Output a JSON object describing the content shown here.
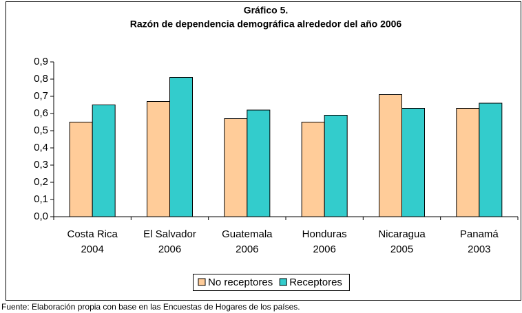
{
  "chart_data": {
    "type": "bar",
    "title": [
      "Gráfico 5.",
      "Razón de dependencia demográfica alrededor del año 2006"
    ],
    "categories": [
      [
        "Costa Rica",
        "2004"
      ],
      [
        "El Salvador",
        "2006"
      ],
      [
        "Guatemala",
        "2006"
      ],
      [
        "Honduras",
        "2006"
      ],
      [
        "Nicaragua",
        "2005"
      ],
      [
        "Panamá",
        "2003"
      ]
    ],
    "series": [
      {
        "name": "No receptores",
        "color": "#ffcc99",
        "values": [
          0.55,
          0.67,
          0.57,
          0.55,
          0.71,
          0.63
        ]
      },
      {
        "name": "Receptores",
        "color": "#33cccc",
        "values": [
          0.65,
          0.81,
          0.62,
          0.59,
          0.63,
          0.66
        ]
      }
    ],
    "ylim": [
      0,
      0.9
    ],
    "yticks": [
      {
        "value": 0,
        "label": "0,0"
      },
      {
        "value": 0.1,
        "label": "0,1"
      },
      {
        "value": 0.2,
        "label": "0,2"
      },
      {
        "value": 0.3,
        "label": "0,3"
      },
      {
        "value": 0.4,
        "label": "0,4"
      },
      {
        "value": 0.5,
        "label": "0,5"
      },
      {
        "value": 0.6,
        "label": "0,6"
      },
      {
        "value": 0.7,
        "label": "0,7"
      },
      {
        "value": 0.8,
        "label": "0,8"
      },
      {
        "value": 0.9,
        "label": "0,9"
      }
    ],
    "grid": false,
    "legend": "bottom",
    "note": "Fuente: Elaboración propia con base en las Encuestas de Hogares de los países."
  }
}
